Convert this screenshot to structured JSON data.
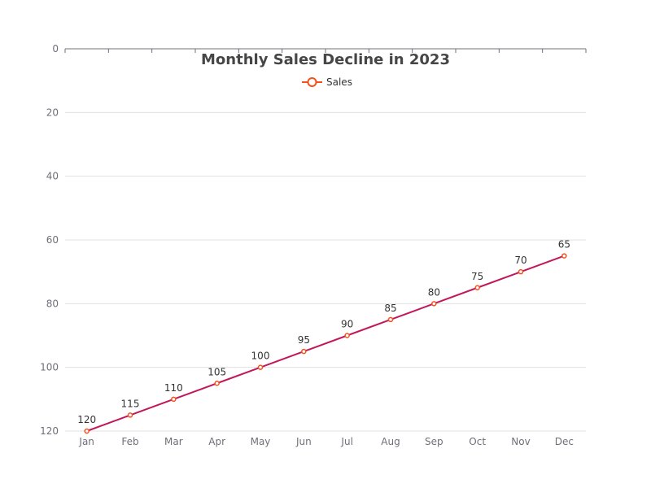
{
  "chart_data": {
    "type": "line",
    "title": "Monthly Sales Decline in 2023",
    "xlabel": "",
    "ylabel": "",
    "categories": [
      "Jan",
      "Feb",
      "Mar",
      "Apr",
      "May",
      "Jun",
      "Jul",
      "Aug",
      "Sep",
      "Oct",
      "Nov",
      "Dec"
    ],
    "series": [
      {
        "name": "Sales",
        "values": [
          120,
          115,
          110,
          105,
          100,
          95,
          90,
          85,
          80,
          75,
          70,
          65
        ]
      }
    ],
    "ylim": [
      0,
      120
    ],
    "y_inverted": true,
    "y_ticks": [
      0,
      20,
      40,
      60,
      80,
      100,
      120
    ],
    "grid": true,
    "legend_position": "top-center",
    "data_labels": true,
    "colors": {
      "line": "#c2185b",
      "marker_stroke": "#f4511e",
      "legend_marker": "#f4511e",
      "grid": "#e0e0e0",
      "axis": "#6e7079"
    }
  }
}
